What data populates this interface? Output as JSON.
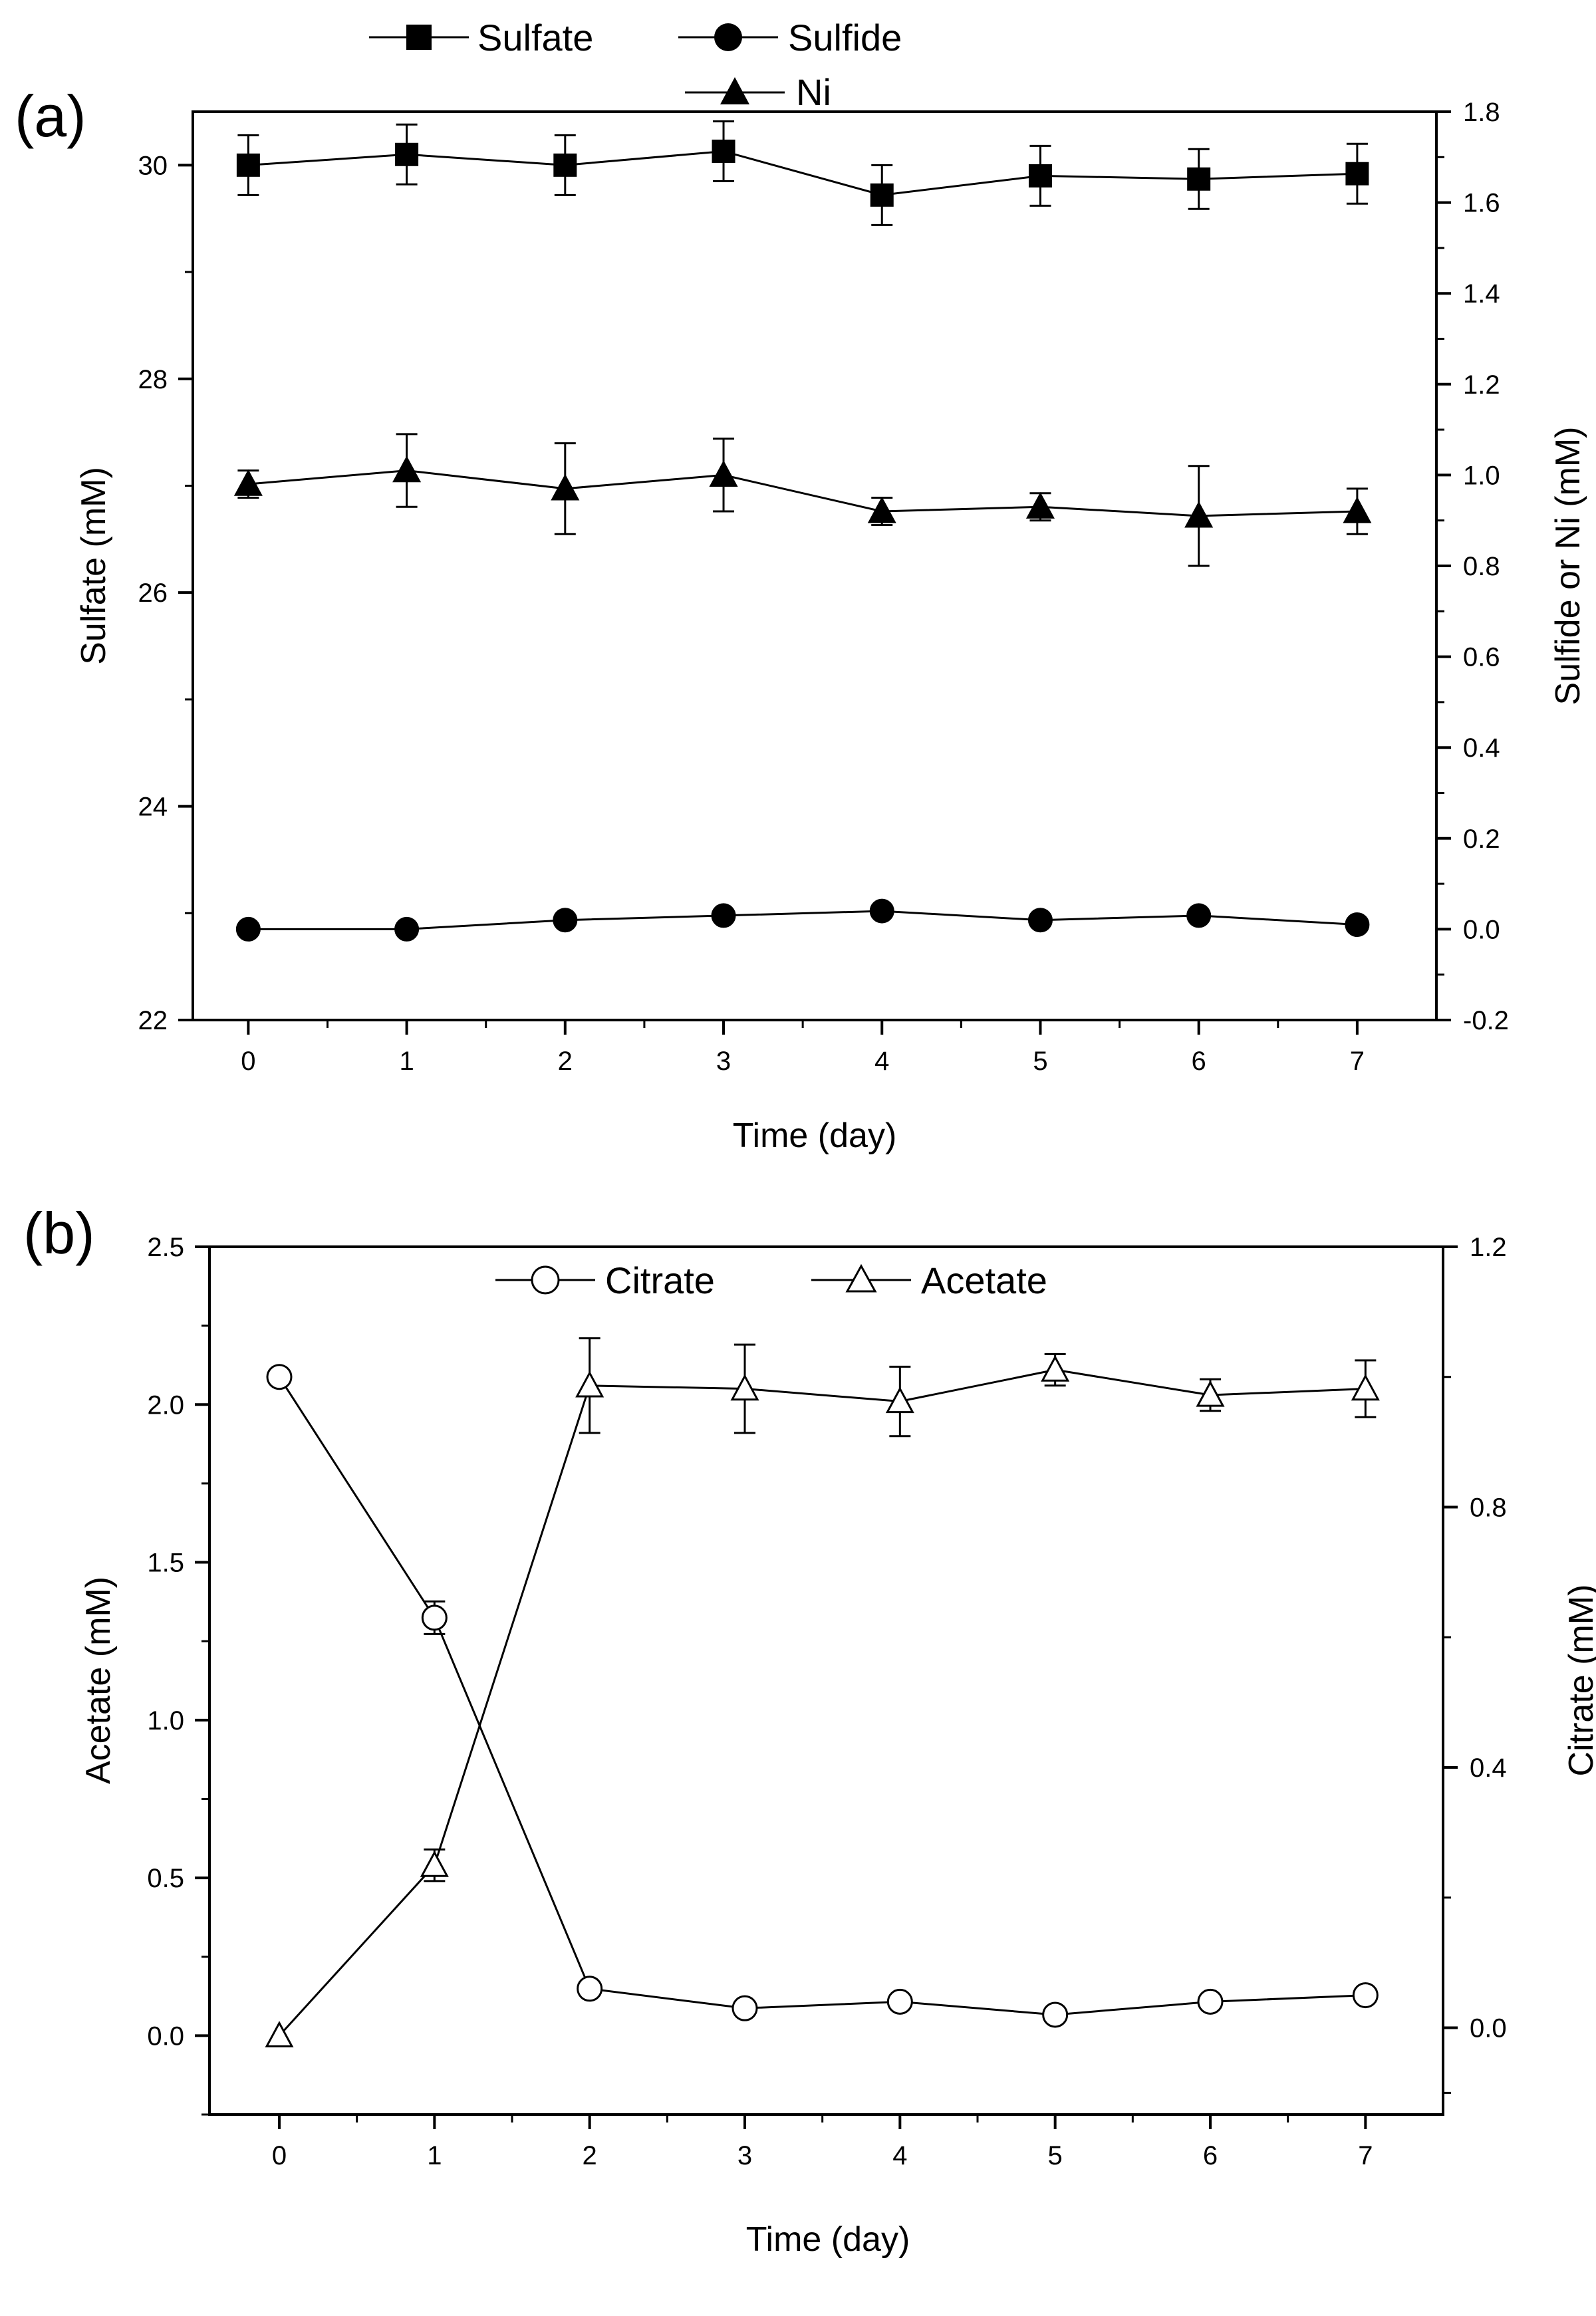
{
  "chart_data": [
    {
      "panel_label": "(a)",
      "type": "line",
      "xlabel": "Time (day)",
      "ylabel": "Sulfate (mM)",
      "y2label": "Sulfide or Ni (mM)",
      "xlim": [
        -0.35,
        7.5
      ],
      "ylim": [
        22,
        30.5
      ],
      "y2lim": [
        -0.2,
        1.8
      ],
      "x_ticks": [
        0,
        1,
        2,
        3,
        4,
        5,
        6,
        7
      ],
      "y_ticks": [
        22,
        24,
        26,
        28,
        30
      ],
      "y2_ticks": [
        -0.2,
        0.0,
        0.2,
        0.4,
        0.6,
        0.8,
        1.0,
        1.2,
        1.4,
        1.6,
        1.8
      ],
      "y_tick_labels": [
        "22",
        "24",
        "26",
        "28",
        "30"
      ],
      "y2_tick_labels": [
        "-0.2",
        "0.0",
        "0.2",
        "0.4",
        "0.6",
        "0.8",
        "1.0",
        "1.2",
        "1.4",
        "1.6",
        "1.8"
      ],
      "legend_placement": "top",
      "series": [
        {
          "name": "Sulfate",
          "axis": "left",
          "marker": "square",
          "filled": true,
          "x": [
            0,
            1,
            2,
            3,
            4,
            5,
            6,
            7
          ],
          "y": [
            30.0,
            30.1,
            30.0,
            30.13,
            29.72,
            29.9,
            29.87,
            29.92
          ],
          "err": [
            0.28,
            0.28,
            0.28,
            0.28,
            0.28,
            0.28,
            0.28,
            0.28
          ]
        },
        {
          "name": "Sulfide",
          "axis": "right",
          "marker": "circle",
          "filled": true,
          "x": [
            0,
            1,
            2,
            3,
            4,
            5,
            6,
            7
          ],
          "y": [
            0.0,
            0.0,
            0.02,
            0.03,
            0.04,
            0.02,
            0.03,
            0.01
          ],
          "err": [
            0,
            0,
            0,
            0,
            0,
            0,
            0,
            0
          ]
        },
        {
          "name": "Ni",
          "axis": "right",
          "marker": "triangle",
          "filled": true,
          "x": [
            0,
            1,
            2,
            3,
            4,
            5,
            6,
            7
          ],
          "y": [
            0.98,
            1.01,
            0.97,
            1.0,
            0.92,
            0.93,
            0.91,
            0.92
          ],
          "err": [
            0.03,
            0.08,
            0.1,
            0.08,
            0.03,
            0.03,
            0.11,
            0.05
          ]
        }
      ]
    },
    {
      "panel_label": "(b)",
      "type": "line",
      "xlabel": "Time (day)",
      "ylabel": "Acetate (mM)",
      "y2label": "Citrate (mM)",
      "xlim": [
        -0.45,
        7.5
      ],
      "ylim": [
        -0.25,
        2.5
      ],
      "y2lim": [
        -0.1333,
        1.2
      ],
      "x_ticks": [
        0,
        1,
        2,
        3,
        4,
        5,
        6,
        7
      ],
      "y_ticks": [
        0.0,
        0.5,
        1.0,
        1.5,
        2.0,
        2.5
      ],
      "y2_ticks": [
        0.0,
        0.4,
        0.8,
        1.2
      ],
      "y_tick_labels": [
        "0.0",
        "0.5",
        "1.0",
        "1.5",
        "2.0",
        "2.5"
      ],
      "y2_tick_labels": [
        "0.0",
        "0.4",
        "0.8",
        "1.2"
      ],
      "legend_placement": "top",
      "series": [
        {
          "name": "Citrate",
          "axis": "right",
          "marker": "circle",
          "filled": false,
          "x": [
            0,
            1,
            2,
            3,
            4,
            5,
            6,
            7
          ],
          "y": [
            1.0,
            0.63,
            0.06,
            0.03,
            0.04,
            0.02,
            0.04,
            0.05
          ],
          "err": [
            0.01,
            0.025,
            0.01,
            0,
            0,
            0,
            0,
            0
          ]
        },
        {
          "name": "Acetate",
          "axis": "left",
          "marker": "triangle",
          "filled": false,
          "x": [
            0,
            1,
            2,
            3,
            4,
            5,
            6,
            7
          ],
          "y": [
            0.0,
            0.54,
            2.06,
            2.05,
            2.01,
            2.11,
            2.03,
            2.05
          ],
          "err": [
            0,
            0.05,
            0.15,
            0.14,
            0.11,
            0.05,
            0.05,
            0.09
          ]
        }
      ]
    }
  ]
}
